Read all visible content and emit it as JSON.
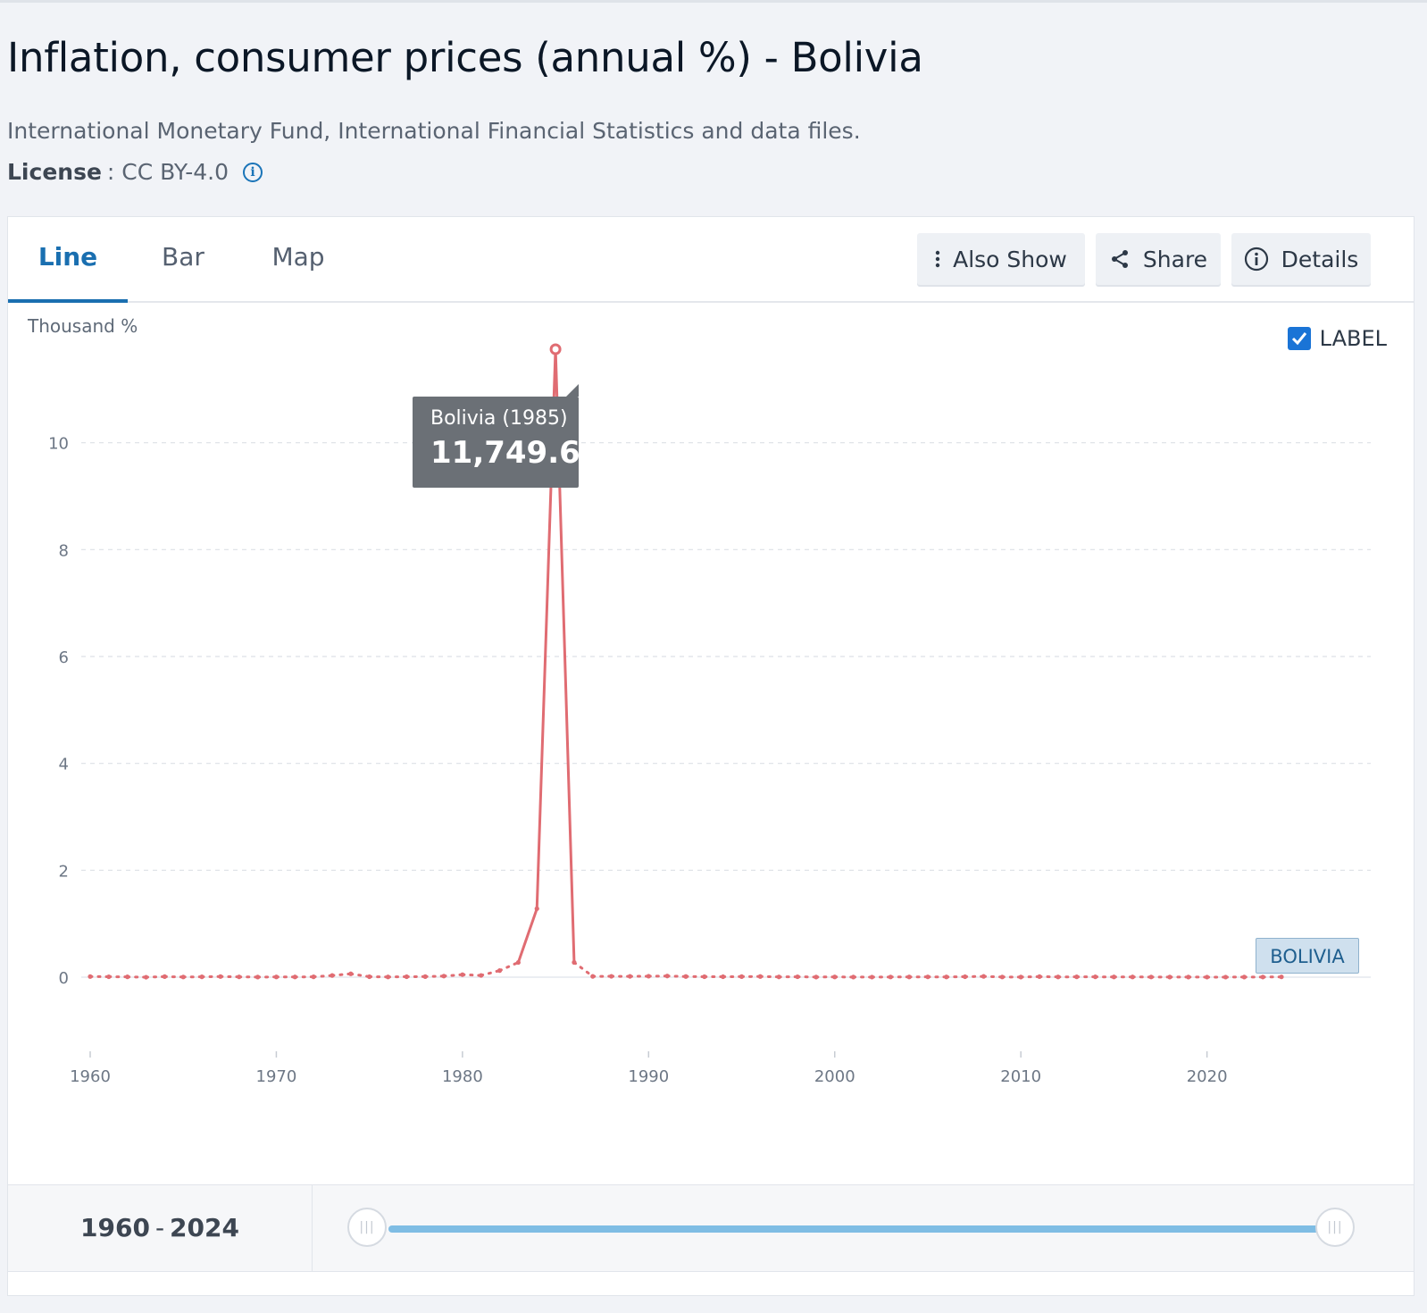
{
  "page": {
    "title": "Inflation, consumer prices (annual %) - Bolivia",
    "source": "International Monetary Fund, International Financial Statistics and data files.",
    "license_label": "License",
    "license_value": ": CC BY-4.0",
    "info_icon": "info-circle-icon"
  },
  "tabs": [
    {
      "label": "Line",
      "active": true
    },
    {
      "label": "Bar",
      "active": false
    },
    {
      "label": "Map",
      "active": false
    }
  ],
  "toolbar": {
    "also_show": {
      "label": "Also Show",
      "icon": "kebab-menu-icon"
    },
    "share": {
      "label": "Share",
      "icon": "share-icon"
    },
    "details": {
      "label": "Details",
      "icon": "info-circle-icon"
    }
  },
  "chart_controls": {
    "unit_label": "Thousand %",
    "label_toggle": {
      "label": "LABEL",
      "checked": true
    }
  },
  "tooltip": {
    "title": "Bolivia (1985)",
    "value": "11,749.6"
  },
  "series_tag": "BOLIVIA",
  "range": {
    "start": "1960",
    "end": "2024",
    "separator": "-"
  },
  "colors": {
    "series": "#e06c72",
    "accent": "#1a6fb0",
    "slider": "#7fbde4"
  },
  "chart_data": {
    "type": "line",
    "title": "Inflation, consumer prices (annual %) - Bolivia",
    "ylabel": "Thousand %",
    "xlabel": "",
    "xlim": [
      1960,
      2024
    ],
    "ylim": [
      0,
      12
    ],
    "x_ticks": [
      1960,
      1970,
      1980,
      1990,
      2000,
      2010,
      2020
    ],
    "y_ticks": [
      0,
      2,
      4,
      6,
      8,
      10
    ],
    "grid": true,
    "legend": "none",
    "series": [
      {
        "name": "BOLIVIA",
        "x": [
          1960,
          1961,
          1962,
          1963,
          1964,
          1965,
          1966,
          1967,
          1968,
          1969,
          1970,
          1971,
          1972,
          1973,
          1974,
          1975,
          1976,
          1977,
          1978,
          1979,
          1980,
          1981,
          1982,
          1983,
          1984,
          1985,
          1986,
          1987,
          1988,
          1989,
          1990,
          1991,
          1992,
          1993,
          1994,
          1995,
          1996,
          1997,
          1998,
          1999,
          2000,
          2001,
          2002,
          2003,
          2004,
          2005,
          2006,
          2007,
          2008,
          2009,
          2010,
          2011,
          2012,
          2013,
          2014,
          2015,
          2016,
          2017,
          2018,
          2019,
          2020,
          2021,
          2022,
          2023,
          2024
        ],
        "values": [
          0.0115,
          0.0077,
          0.0058,
          -0.0007,
          0.0102,
          0.0029,
          0.0067,
          0.0114,
          0.0055,
          0.0023,
          0.0038,
          0.0036,
          0.0065,
          0.0313,
          0.0627,
          0.008,
          0.0045,
          0.0081,
          0.0104,
          0.0197,
          0.0473,
          0.0323,
          0.1234,
          0.2752,
          1.2815,
          11.7496,
          0.2761,
          0.0147,
          0.016,
          0.0152,
          0.0174,
          0.0214,
          0.0123,
          0.0085,
          0.0079,
          0.0102,
          0.0124,
          0.0047,
          0.0077,
          0.0022,
          0.0046,
          0.0016,
          0.0009,
          0.0033,
          0.0044,
          0.0054,
          0.0043,
          0.0087,
          0.014,
          0.0033,
          0.0025,
          0.0099,
          0.0045,
          0.0057,
          0.0058,
          0.0041,
          0.0036,
          0.0028,
          0.0023,
          0.0018,
          0.0009,
          0.0007,
          0.0017,
          0.0026,
          0.0051
        ],
        "highlight": {
          "x": 1985,
          "y": 11.7496
        }
      }
    ]
  }
}
